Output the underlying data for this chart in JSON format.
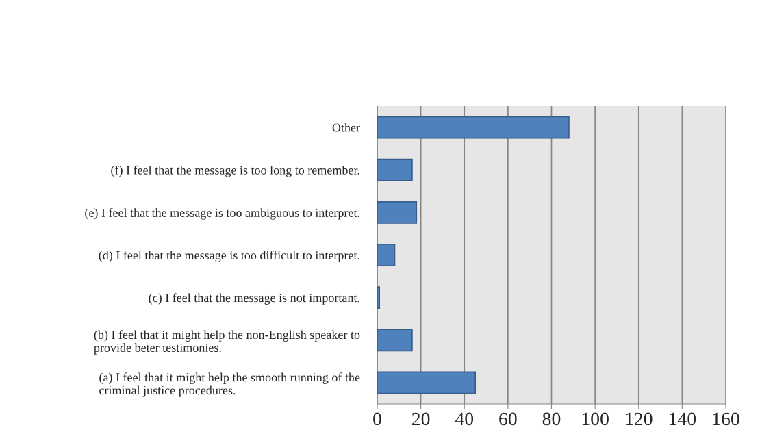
{
  "chart_data": {
    "type": "bar",
    "orientation": "horizontal",
    "categories": [
      "Other",
      "(f) I feel that the message is too long to remember.",
      "(e) I feel that the message is too ambiguous to interpret.",
      "(d) I feel that the message is too difficult to interpret.",
      "(c) I feel that the message is not important.",
      "(b) I feel that it might help the non-English speaker to\nprovide beter testimonies.",
      "(a) I feel that it might help the smooth running of the\ncriminal justice procedures."
    ],
    "values": [
      88,
      16,
      18,
      8,
      1,
      16,
      45
    ],
    "color": "#4f81bd",
    "xlim": [
      0,
      160
    ],
    "xticks": [
      0,
      20,
      40,
      60,
      80,
      100,
      120,
      140,
      160
    ],
    "grid": "x",
    "legend": false
  }
}
